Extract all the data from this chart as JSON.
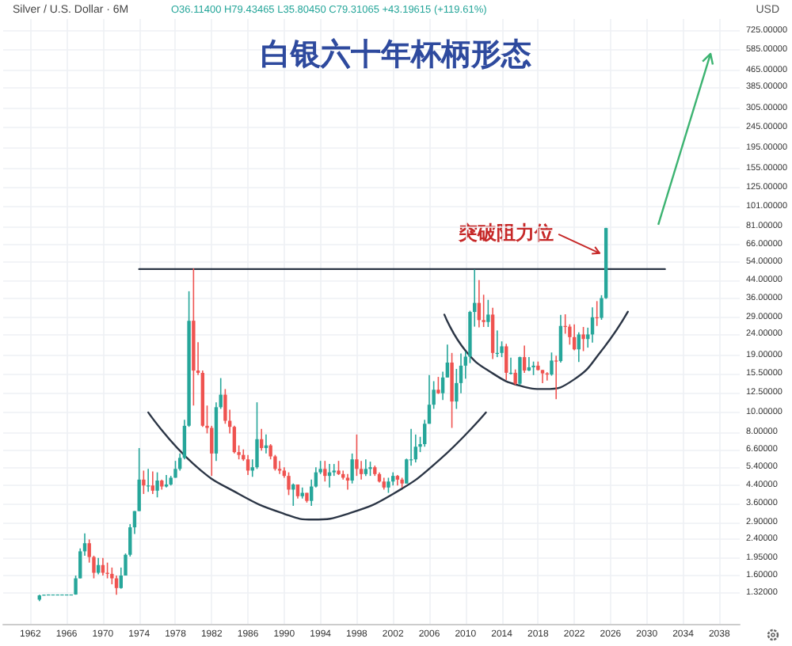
{
  "chart_data": {
    "type": "candlestick",
    "title": "白银六十年杯柄形态",
    "subtitle": "Silver / U.S. Dollar · 6M",
    "annotations": [
      "O36.11400 H79.43465 L35.80450 C79.31065 +43.19615 (+119.61%)",
      "USD",
      "突破阻力位"
    ],
    "x": [
      "1963-01",
      "1963-07",
      "1964-01",
      "1964-07",
      "1965-01",
      "1965-07",
      "1966-01",
      "1966-07",
      "1967-01",
      "1967-07",
      "1968-01",
      "1968-07",
      "1969-01",
      "1969-07",
      "1970-01",
      "1970-07",
      "1971-01",
      "1971-07",
      "1972-01",
      "1972-07",
      "1973-01",
      "1973-07",
      "1974-01",
      "1974-07",
      "1975-01",
      "1975-07",
      "1976-01",
      "1976-07",
      "1977-01",
      "1977-07",
      "1978-01",
      "1978-07",
      "1979-01",
      "1979-07",
      "1980-01",
      "1980-07",
      "1981-01",
      "1981-07",
      "1982-01",
      "1982-07",
      "1983-01",
      "1983-07",
      "1984-01",
      "1984-07",
      "1985-01",
      "1985-07",
      "1986-01",
      "1986-07",
      "1987-01",
      "1987-07",
      "1988-01",
      "1988-07",
      "1989-01",
      "1989-07",
      "1990-01",
      "1990-07",
      "1991-01",
      "1991-07",
      "1992-01",
      "1992-07",
      "1993-01",
      "1993-07",
      "1994-01",
      "1994-07",
      "1995-01",
      "1995-07",
      "1996-01",
      "1996-07",
      "1997-01",
      "1997-07",
      "1998-01",
      "1998-07",
      "1999-01",
      "1999-07",
      "2000-01",
      "2000-07",
      "2001-01",
      "2001-07",
      "2002-01",
      "2002-07",
      "2003-01",
      "2003-07",
      "2004-01",
      "2004-07",
      "2005-01",
      "2005-07",
      "2006-01",
      "2006-07",
      "2007-01",
      "2007-07",
      "2008-01",
      "2008-07",
      "2009-01",
      "2009-07",
      "2010-01",
      "2010-07",
      "2011-01",
      "2011-07",
      "2012-01",
      "2012-07",
      "2013-01",
      "2013-07",
      "2014-01",
      "2014-07",
      "2015-01",
      "2015-07",
      "2016-01",
      "2016-07",
      "2017-01",
      "2017-07",
      "2018-01",
      "2018-07",
      "2019-01",
      "2019-07",
      "2020-01",
      "2020-07",
      "2021-01",
      "2021-07",
      "2022-01",
      "2022-07",
      "2023-01",
      "2023-07",
      "2024-01",
      "2024-07",
      "2025-01",
      "2025-07"
    ],
    "ohlc": [
      [
        1.22,
        1.29,
        1.2,
        1.28
      ],
      [
        1.28,
        1.29,
        1.28,
        1.29
      ],
      [
        1.29,
        1.293,
        1.29,
        1.293
      ],
      [
        1.29,
        1.293,
        1.29,
        1.293
      ],
      [
        1.29,
        1.293,
        1.29,
        1.293
      ],
      [
        1.29,
        1.293,
        1.29,
        1.293
      ],
      [
        1.29,
        1.293,
        1.29,
        1.293
      ],
      [
        1.29,
        1.293,
        1.29,
        1.293
      ],
      [
        1.293,
        1.6,
        1.29,
        1.55
      ],
      [
        1.55,
        2.17,
        1.55,
        2.1
      ],
      [
        2.1,
        2.57,
        2.0,
        2.3
      ],
      [
        2.3,
        2.4,
        1.85,
        1.97
      ],
      [
        1.97,
        2.0,
        1.55,
        1.65
      ],
      [
        1.65,
        1.95,
        1.62,
        1.8
      ],
      [
        1.8,
        1.95,
        1.6,
        1.65
      ],
      [
        1.65,
        1.85,
        1.55,
        1.63
      ],
      [
        1.63,
        1.75,
        1.45,
        1.55
      ],
      [
        1.55,
        1.6,
        1.29,
        1.39
      ],
      [
        1.39,
        1.75,
        1.38,
        1.6
      ],
      [
        1.6,
        2.05,
        1.6,
        2.02
      ],
      [
        2.02,
        2.85,
        1.98,
        2.75
      ],
      [
        2.75,
        3.3,
        2.55,
        3.3
      ],
      [
        3.3,
        6.7,
        3.3,
        4.7
      ],
      [
        4.7,
        5.2,
        4.0,
        4.4
      ],
      [
        4.4,
        5.3,
        4.1,
        4.4
      ],
      [
        4.4,
        5.15,
        4.0,
        4.15
      ],
      [
        4.15,
        5.1,
        3.85,
        4.65
      ],
      [
        4.65,
        4.7,
        4.2,
        4.35
      ],
      [
        4.35,
        4.95,
        4.3,
        4.45
      ],
      [
        4.45,
        4.9,
        4.4,
        4.8
      ],
      [
        4.8,
        5.8,
        4.8,
        5.3
      ],
      [
        5.3,
        6.3,
        5.2,
        6.0
      ],
      [
        6.0,
        9.2,
        5.9,
        8.6
      ],
      [
        8.6,
        39.0,
        8.5,
        28.0
      ],
      [
        28.0,
        50.4,
        10.8,
        16.0
      ],
      [
        16.0,
        22.0,
        15.2,
        15.6
      ],
      [
        15.6,
        16.0,
        8.5,
        8.6
      ],
      [
        8.6,
        10.8,
        7.9,
        8.4
      ],
      [
        8.4,
        8.6,
        4.9,
        6.3
      ],
      [
        6.3,
        11.2,
        5.8,
        10.6
      ],
      [
        10.6,
        14.7,
        10.4,
        12.2
      ],
      [
        12.2,
        13.0,
        8.8,
        9.1
      ],
      [
        9.1,
        10.3,
        7.9,
        8.5
      ],
      [
        8.5,
        8.6,
        6.3,
        6.4
      ],
      [
        6.4,
        6.9,
        5.9,
        6.2
      ],
      [
        6.2,
        6.6,
        5.8,
        5.9
      ],
      [
        5.9,
        6.2,
        4.95,
        5.2
      ],
      [
        5.2,
        5.9,
        4.85,
        5.4
      ],
      [
        5.4,
        11.2,
        5.3,
        7.4
      ],
      [
        7.4,
        8.3,
        6.5,
        6.7
      ],
      [
        6.7,
        7.8,
        6.3,
        6.9
      ],
      [
        6.9,
        7.0,
        5.9,
        6.1
      ],
      [
        6.1,
        6.2,
        5.2,
        5.3
      ],
      [
        5.3,
        5.8,
        5.0,
        5.2
      ],
      [
        5.2,
        5.4,
        4.8,
        4.9
      ],
      [
        4.9,
        5.1,
        3.95,
        4.2
      ],
      [
        4.2,
        4.5,
        3.5,
        4.45
      ],
      [
        4.45,
        4.45,
        3.8,
        3.9
      ],
      [
        3.9,
        4.3,
        3.8,
        4.05
      ],
      [
        4.05,
        4.05,
        3.63,
        3.7
      ],
      [
        3.7,
        4.7,
        3.5,
        4.35
      ],
      [
        4.35,
        5.4,
        4.3,
        5.1
      ],
      [
        5.1,
        5.8,
        5.0,
        5.3
      ],
      [
        5.3,
        5.8,
        4.6,
        4.9
      ],
      [
        4.9,
        5.6,
        4.3,
        5.1
      ],
      [
        5.1,
        5.6,
        4.9,
        5.2
      ],
      [
        5.2,
        5.8,
        4.95,
        5.0
      ],
      [
        5.0,
        5.2,
        4.7,
        4.8
      ],
      [
        4.8,
        5.0,
        4.2,
        4.65
      ],
      [
        4.65,
        6.3,
        4.5,
        5.9
      ],
      [
        5.9,
        7.8,
        4.9,
        5.3
      ],
      [
        5.3,
        5.8,
        4.7,
        5.0
      ],
      [
        5.0,
        5.9,
        4.9,
        5.3
      ],
      [
        5.3,
        5.75,
        4.9,
        5.4
      ],
      [
        5.4,
        5.5,
        4.9,
        5.0
      ],
      [
        5.0,
        5.1,
        4.55,
        4.6
      ],
      [
        4.6,
        4.8,
        4.2,
        4.3
      ],
      [
        4.3,
        4.8,
        4.05,
        4.6
      ],
      [
        4.6,
        5.1,
        4.4,
        4.9
      ],
      [
        4.9,
        4.95,
        4.4,
        4.7
      ],
      [
        4.7,
        4.8,
        4.3,
        4.5
      ],
      [
        4.5,
        5.95,
        4.5,
        5.9
      ],
      [
        5.9,
        8.3,
        5.5,
        5.9
      ],
      [
        5.9,
        7.8,
        5.7,
        6.8
      ],
      [
        6.8,
        7.6,
        6.4,
        7.0
      ],
      [
        7.0,
        9.2,
        6.8,
        8.8
      ],
      [
        8.8,
        15.2,
        8.8,
        10.9
      ],
      [
        10.9,
        14.2,
        10.4,
        12.9
      ],
      [
        12.9,
        14.9,
        12.3,
        12.4
      ],
      [
        12.4,
        15.8,
        11.5,
        14.8
      ],
      [
        14.8,
        21.4,
        14.8,
        17.5
      ],
      [
        17.5,
        19.5,
        8.4,
        11.3
      ],
      [
        11.3,
        16.3,
        10.4,
        13.9
      ],
      [
        13.9,
        19.4,
        12.4,
        16.9
      ],
      [
        16.9,
        19.8,
        14.6,
        18.7
      ],
      [
        18.7,
        31.3,
        17.4,
        30.9
      ],
      [
        30.9,
        49.8,
        26.2,
        34.2
      ],
      [
        34.2,
        44.2,
        26.0,
        28.2
      ],
      [
        28.2,
        37.5,
        26.1,
        27.6
      ],
      [
        27.6,
        35.4,
        26.1,
        30.0
      ],
      [
        30.0,
        32.4,
        18.2,
        19.5
      ],
      [
        19.5,
        25.1,
        18.6,
        19.5
      ],
      [
        19.5,
        22.2,
        18.6,
        21.0
      ],
      [
        21.0,
        21.6,
        14.4,
        15.6
      ],
      [
        15.6,
        18.5,
        15.3,
        15.6
      ],
      [
        15.6,
        16.2,
        13.6,
        13.8
      ],
      [
        13.8,
        18.7,
        13.6,
        18.6
      ],
      [
        18.6,
        21.2,
        15.6,
        16.0
      ],
      [
        16.0,
        18.6,
        15.9,
        16.6
      ],
      [
        16.6,
        17.7,
        15.2,
        16.9
      ],
      [
        16.9,
        17.7,
        16.0,
        16.1
      ],
      [
        16.1,
        16.1,
        13.9,
        15.5
      ],
      [
        15.5,
        15.7,
        14.3,
        15.3
      ],
      [
        15.3,
        19.6,
        15.1,
        17.9
      ],
      [
        17.9,
        18.9,
        11.6,
        17.8
      ],
      [
        17.8,
        29.9,
        17.5,
        26.4
      ],
      [
        26.4,
        30.1,
        24.2,
        26.2
      ],
      [
        26.2,
        26.9,
        21.4,
        23.3
      ],
      [
        23.3,
        26.9,
        20.1,
        20.3
      ],
      [
        20.3,
        24.6,
        17.6,
        24.0
      ],
      [
        24.0,
        26.1,
        19.9,
        22.8
      ],
      [
        22.8,
        25.9,
        20.7,
        24.0
      ],
      [
        24.0,
        32.5,
        21.9,
        29.1
      ],
      [
        29.1,
        34.9,
        26.4,
        28.9
      ],
      [
        28.9,
        37.3,
        28.3,
        36.1
      ],
      [
        36.114,
        79.43465,
        35.8045,
        79.31065
      ]
    ],
    "colors": [
      "#26a69a",
      "#26a69a",
      "#26a69a",
      "#26a69a",
      "#26a69a",
      "#26a69a",
      "#26a69a",
      "#26a69a",
      "#26a69a",
      "#26a69a",
      "#26a69a",
      "#ef5350",
      "#ef5350",
      "#26a69a",
      "#ef5350",
      "#ef5350",
      "#ef5350",
      "#ef5350",
      "#26a69a",
      "#26a69a",
      "#26a69a",
      "#26a69a",
      "#26a69a",
      "#ef5350",
      "#26a69a",
      "#ef5350",
      "#26a69a",
      "#ef5350",
      "#26a69a",
      "#26a69a",
      "#26a69a",
      "#26a69a",
      "#26a69a",
      "#26a69a",
      "#ef5350",
      "#ef5350",
      "#ef5350",
      "#ef5350",
      "#ef5350",
      "#26a69a",
      "#26a69a",
      "#ef5350",
      "#ef5350",
      "#ef5350",
      "#ef5350",
      "#ef5350",
      "#ef5350",
      "#26a69a",
      "#26a69a",
      "#ef5350",
      "#26a69a",
      "#ef5350",
      "#ef5350",
      "#ef5350",
      "#ef5350",
      "#ef5350",
      "#26a69a",
      "#ef5350",
      "#26a69a",
      "#ef5350",
      "#26a69a",
      "#26a69a",
      "#26a69a",
      "#ef5350",
      "#26a69a",
      "#26a69a",
      "#ef5350",
      "#ef5350",
      "#ef5350",
      "#26a69a",
      "#ef5350",
      "#ef5350",
      "#26a69a",
      "#26a69a",
      "#ef5350",
      "#ef5350",
      "#ef5350",
      "#26a69a",
      "#26a69a",
      "#ef5350",
      "#ef5350",
      "#26a69a",
      "#26a69a",
      "#26a69a",
      "#26a69a",
      "#26a69a",
      "#26a69a",
      "#26a69a",
      "#ef5350",
      "#26a69a",
      "#26a69a",
      "#ef5350",
      "#26a69a",
      "#26a69a",
      "#26a69a",
      "#26a69a",
      "#26a69a",
      "#ef5350",
      "#ef5350",
      "#26a69a",
      "#ef5350",
      "#26a69a",
      "#26a69a",
      "#ef5350",
      "#26a69a",
      "#ef5350",
      "#26a69a",
      "#ef5350",
      "#26a69a",
      "#26a69a",
      "#ef5350",
      "#ef5350",
      "#ef5350",
      "#26a69a",
      "#ef5350",
      "#26a69a",
      "#ef5350",
      "#ef5350",
      "#ef5350",
      "#26a69a",
      "#ef5350",
      "#26a69a",
      "#26a69a",
      "#ef5350",
      "#26a69a",
      "#26a69a"
    ],
    "series": [
      {
        "type": "line",
        "color": "#2b3545",
        "x": [
          "1974-01",
          "2032-01"
        ],
        "values": [
          50,
          50
        ]
      },
      {
        "type": "line",
        "color": "#2b3545",
        "x": [
          "1975-01",
          "1980-01",
          "1985-01",
          "1990-01",
          "1993-03",
          "1997-01",
          "2002-01",
          "2007-01",
          "2012-04"
        ],
        "values": [
          10,
          5.6,
          4.0,
          3.2,
          3.0,
          3.2,
          4.0,
          5.8,
          10
        ]
      },
      {
        "type": "line",
        "color": "#2b3545",
        "x": [
          "2007-09",
          "2010-01",
          "2013-01",
          "2016-01",
          "2018-10",
          "2022-01",
          "2025-01",
          "2027-12"
        ],
        "values": [
          30,
          20,
          15.5,
          13.5,
          13,
          14.5,
          20,
          31
        ]
      }
    ],
    "log": "y",
    "grid": true,
    "xlim": [
      "1959-01",
      "2040-04"
    ],
    "xticks": [
      "1962",
      "1966",
      "1970",
      "1974",
      "1978",
      "1982",
      "1986",
      "1990",
      "1994",
      "1998",
      "2002",
      "2006",
      "2010",
      "2014",
      "2018",
      "2022",
      "2026",
      "2030",
      "2034",
      "2038"
    ],
    "ylim": [
      0.93,
      830
    ],
    "yticks": [
      {
        "value": 725,
        "label": "725.00000"
      },
      {
        "value": 585,
        "label": "585.00000"
      },
      {
        "value": 465,
        "label": "465.00000"
      },
      {
        "value": 385,
        "label": "385.00000"
      },
      {
        "value": 305,
        "label": "305.00000"
      },
      {
        "value": 245,
        "label": "245.00000"
      },
      {
        "value": 195,
        "label": "195.00000"
      },
      {
        "value": 155,
        "label": "155.00000"
      },
      {
        "value": 125,
        "label": "125.00000"
      },
      {
        "value": 101,
        "label": "101.00000"
      },
      {
        "value": 81,
        "label": "81.00000"
      },
      {
        "value": 66,
        "label": "66.00000"
      },
      {
        "value": 54,
        "label": "54.00000"
      },
      {
        "value": 44,
        "label": "44.00000"
      },
      {
        "value": 36,
        "label": "36.00000"
      },
      {
        "value": 29,
        "label": "29.00000"
      },
      {
        "value": 24,
        "label": "24.00000"
      },
      {
        "value": 19,
        "label": "19.00000"
      },
      {
        "value": 15.5,
        "label": "15.50000"
      },
      {
        "value": 12.5,
        "label": "12.50000"
      },
      {
        "value": 10,
        "label": "10.00000"
      },
      {
        "value": 8,
        "label": "8.00000"
      },
      {
        "value": 6.6,
        "label": "6.60000"
      },
      {
        "value": 5.4,
        "label": "5.40000"
      },
      {
        "value": 4.4,
        "label": "4.40000"
      },
      {
        "value": 3.6,
        "label": "3.60000"
      },
      {
        "value": 2.9,
        "label": "2.90000"
      },
      {
        "value": 2.4,
        "label": "2.40000"
      },
      {
        "value": 1.95,
        "label": "1.95000"
      },
      {
        "value": 1.6,
        "label": "1.60000"
      },
      {
        "value": 1.32,
        "label": "1.32000"
      }
    ]
  }
}
